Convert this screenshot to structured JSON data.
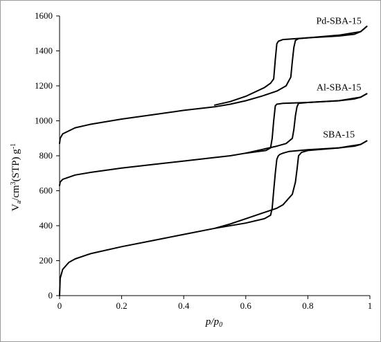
{
  "chart_data": {
    "type": "line",
    "title": "",
    "xlabel": "p/p0",
    "xlabel_parts": {
      "main": "p/p",
      "sub": "0"
    },
    "ylabel_parts": {
      "v": "V",
      "a": "a",
      "mid": "/cm",
      "three": "3",
      "stp": "(STP) g",
      "minus1": "-1"
    },
    "xlim": [
      0,
      1
    ],
    "ylim": [
      0,
      1600
    ],
    "x_ticks": [
      "0",
      "0.2",
      "0.4",
      "0.6",
      "0.8",
      "1"
    ],
    "y_ticks": [
      "0",
      "200",
      "400",
      "600",
      "800",
      "1000",
      "1200",
      "1400",
      "1600"
    ],
    "grid": false,
    "legend": "inline labels",
    "series": [
      {
        "name": "SBA-15",
        "adsorption": [
          [
            0.0,
            0
          ],
          [
            0.002,
            100
          ],
          [
            0.01,
            150
          ],
          [
            0.03,
            190
          ],
          [
            0.05,
            210
          ],
          [
            0.1,
            240
          ],
          [
            0.2,
            280
          ],
          [
            0.3,
            315
          ],
          [
            0.4,
            350
          ],
          [
            0.5,
            385
          ],
          [
            0.55,
            410
          ],
          [
            0.6,
            440
          ],
          [
            0.65,
            470
          ],
          [
            0.7,
            500
          ],
          [
            0.72,
            520
          ],
          [
            0.75,
            580
          ],
          [
            0.76,
            650
          ],
          [
            0.765,
            720
          ],
          [
            0.77,
            800
          ],
          [
            0.78,
            820
          ],
          [
            0.8,
            830
          ],
          [
            0.9,
            845
          ],
          [
            0.95,
            855
          ],
          [
            0.97,
            865
          ],
          [
            0.99,
            885
          ]
        ],
        "desorption": [
          [
            0.99,
            885
          ],
          [
            0.97,
            865
          ],
          [
            0.9,
            845
          ],
          [
            0.8,
            835
          ],
          [
            0.74,
            825
          ],
          [
            0.72,
            815
          ],
          [
            0.71,
            808
          ],
          [
            0.705,
            800
          ],
          [
            0.7,
            780
          ],
          [
            0.695,
            700
          ],
          [
            0.69,
            600
          ],
          [
            0.685,
            500
          ],
          [
            0.68,
            460
          ],
          [
            0.66,
            440
          ],
          [
            0.6,
            415
          ],
          [
            0.5,
            385
          ]
        ]
      },
      {
        "name": "Al-SBA-15",
        "adsorption": [
          [
            0.0,
            630
          ],
          [
            0.002,
            650
          ],
          [
            0.01,
            665
          ],
          [
            0.05,
            690
          ],
          [
            0.1,
            705
          ],
          [
            0.2,
            730
          ],
          [
            0.3,
            750
          ],
          [
            0.4,
            770
          ],
          [
            0.5,
            790
          ],
          [
            0.55,
            800
          ],
          [
            0.6,
            815
          ],
          [
            0.65,
            835
          ],
          [
            0.7,
            855
          ],
          [
            0.73,
            870
          ],
          [
            0.75,
            900
          ],
          [
            0.755,
            950
          ],
          [
            0.76,
            1030
          ],
          [
            0.765,
            1080
          ],
          [
            0.77,
            1100
          ],
          [
            0.8,
            1105
          ],
          [
            0.9,
            1115
          ],
          [
            0.95,
            1125
          ],
          [
            0.97,
            1135
          ],
          [
            0.99,
            1155
          ]
        ],
        "desorption": [
          [
            0.99,
            1155
          ],
          [
            0.97,
            1135
          ],
          [
            0.9,
            1115
          ],
          [
            0.8,
            1105
          ],
          [
            0.72,
            1100
          ],
          [
            0.7,
            1095
          ],
          [
            0.695,
            1085
          ],
          [
            0.69,
            1000
          ],
          [
            0.685,
            900
          ],
          [
            0.68,
            845
          ],
          [
            0.665,
            830
          ],
          [
            0.6,
            815
          ]
        ]
      },
      {
        "name": "Pd-SBA-15",
        "adsorption": [
          [
            0.0,
            870
          ],
          [
            0.002,
            900
          ],
          [
            0.01,
            925
          ],
          [
            0.05,
            960
          ],
          [
            0.1,
            980
          ],
          [
            0.2,
            1010
          ],
          [
            0.3,
            1035
          ],
          [
            0.4,
            1060
          ],
          [
            0.5,
            1080
          ],
          [
            0.55,
            1095
          ],
          [
            0.6,
            1115
          ],
          [
            0.65,
            1140
          ],
          [
            0.7,
            1170
          ],
          [
            0.73,
            1200
          ],
          [
            0.745,
            1250
          ],
          [
            0.75,
            1340
          ],
          [
            0.755,
            1420
          ],
          [
            0.76,
            1460
          ],
          [
            0.77,
            1470
          ],
          [
            0.8,
            1475
          ],
          [
            0.9,
            1485
          ],
          [
            0.95,
            1495
          ],
          [
            0.97,
            1510
          ],
          [
            0.99,
            1540
          ]
        ],
        "desorption": [
          [
            0.99,
            1540
          ],
          [
            0.97,
            1510
          ],
          [
            0.9,
            1490
          ],
          [
            0.8,
            1475
          ],
          [
            0.72,
            1465
          ],
          [
            0.705,
            1455
          ],
          [
            0.7,
            1440
          ],
          [
            0.695,
            1350
          ],
          [
            0.69,
            1240
          ],
          [
            0.68,
            1215
          ],
          [
            0.66,
            1190
          ],
          [
            0.6,
            1140
          ],
          [
            0.55,
            1110
          ],
          [
            0.5,
            1090
          ]
        ]
      }
    ],
    "series_labels": [
      "Pd-SBA-15",
      "Al-SBA-15",
      "SBA-15"
    ]
  }
}
